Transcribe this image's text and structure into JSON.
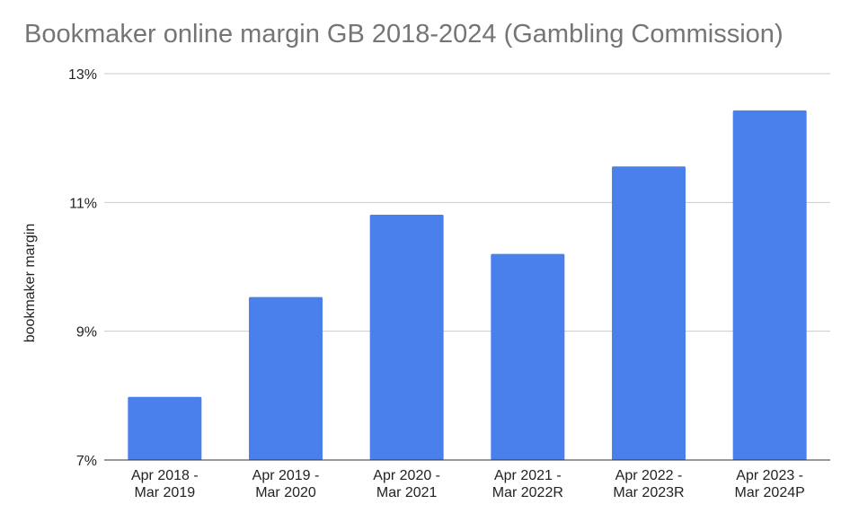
{
  "chart_data": {
    "type": "bar",
    "title": "Bookmaker online margin GB 2018-2024 (Gambling Commission)",
    "ylabel": "bookmaker margin",
    "xlabel": "",
    "categories": [
      [
        "Apr 2018 -",
        "Mar 2019"
      ],
      [
        "Apr 2019 -",
        "Mar 2020"
      ],
      [
        "Apr 2020 -",
        "Mar 2021"
      ],
      [
        "Apr 2021 -",
        "Mar 2022R"
      ],
      [
        "Apr 2022 -",
        "Mar 2023R"
      ],
      [
        "Apr 2023 -",
        "Mar 2024P"
      ]
    ],
    "values": [
      7.98,
      9.53,
      10.81,
      10.2,
      11.56,
      12.43
    ],
    "ylim": [
      7,
      13
    ],
    "yticks": [
      "7%",
      "9%",
      "11%",
      "13%"
    ],
    "ytick_values": [
      7,
      9,
      11,
      13
    ],
    "grid": true,
    "bar_color": "#4a80eb",
    "grid_color": "#cccccc"
  }
}
